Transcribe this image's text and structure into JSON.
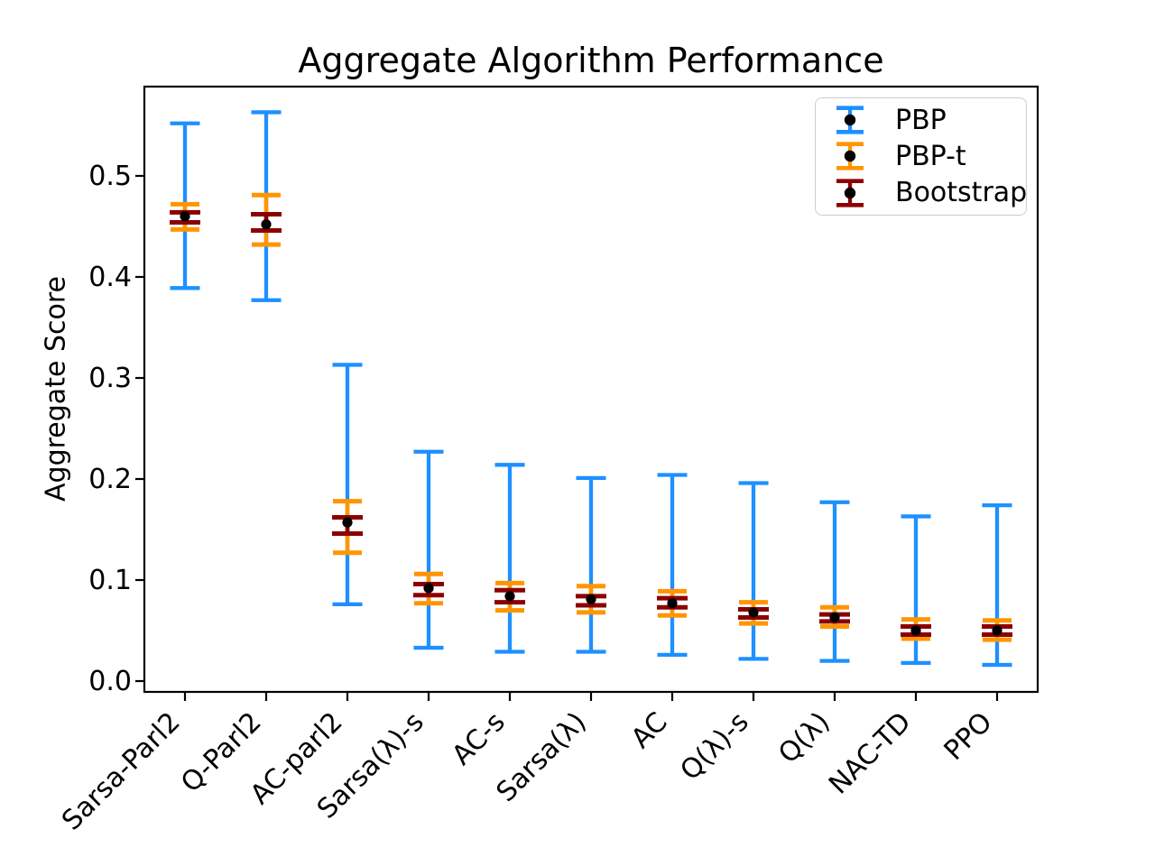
{
  "chart_data": {
    "type": "errorbar",
    "title": "Aggregate Algorithm Performance",
    "xlabel": "",
    "ylabel": "Aggregate Score",
    "categories": [
      "Sarsa-Parl2",
      "Q-Parl2",
      "AC-parl2",
      "Sarsa(λ)-s",
      "AC-s",
      "Sarsa(λ)",
      "AC",
      "Q(λ)-s",
      "Q(λ)",
      "NAC-TD",
      "PPO"
    ],
    "yticks": [
      0.0,
      0.1,
      0.2,
      0.3,
      0.4,
      0.5
    ],
    "ylim": [
      -0.011,
      0.588
    ],
    "grid": false,
    "legend_position": "upper right",
    "marker_color": "#000000",
    "axis_color": "#000000",
    "series": [
      {
        "name": "PBP",
        "color": "#1E90FF",
        "intervals": [
          [
            0.389,
            0.552
          ],
          [
            0.377,
            0.563
          ],
          [
            0.076,
            0.313
          ],
          [
            0.033,
            0.227
          ],
          [
            0.029,
            0.214
          ],
          [
            0.029,
            0.201
          ],
          [
            0.026,
            0.204
          ],
          [
            0.022,
            0.196
          ],
          [
            0.02,
            0.177
          ],
          [
            0.018,
            0.163
          ],
          [
            0.016,
            0.174
          ]
        ]
      },
      {
        "name": "PBP-t",
        "color": "#FF9500",
        "intervals": [
          [
            0.447,
            0.472
          ],
          [
            0.432,
            0.481
          ],
          [
            0.127,
            0.178
          ],
          [
            0.077,
            0.106
          ],
          [
            0.07,
            0.097
          ],
          [
            0.068,
            0.094
          ],
          [
            0.065,
            0.089
          ],
          [
            0.057,
            0.078
          ],
          [
            0.054,
            0.073
          ],
          [
            0.042,
            0.061
          ],
          [
            0.041,
            0.06
          ]
        ]
      },
      {
        "name": "Bootstrap",
        "color": "#8B0000",
        "intervals": [
          [
            0.454,
            0.464
          ],
          [
            0.446,
            0.462
          ],
          [
            0.146,
            0.162
          ],
          [
            0.085,
            0.096
          ],
          [
            0.078,
            0.09
          ],
          [
            0.075,
            0.084
          ],
          [
            0.073,
            0.082
          ],
          [
            0.063,
            0.071
          ],
          [
            0.059,
            0.066
          ],
          [
            0.046,
            0.054
          ],
          [
            0.046,
            0.054
          ]
        ]
      }
    ],
    "centers": [
      0.46,
      0.452,
      0.157,
      0.092,
      0.084,
      0.081,
      0.077,
      0.068,
      0.063,
      0.05,
      0.05
    ]
  }
}
